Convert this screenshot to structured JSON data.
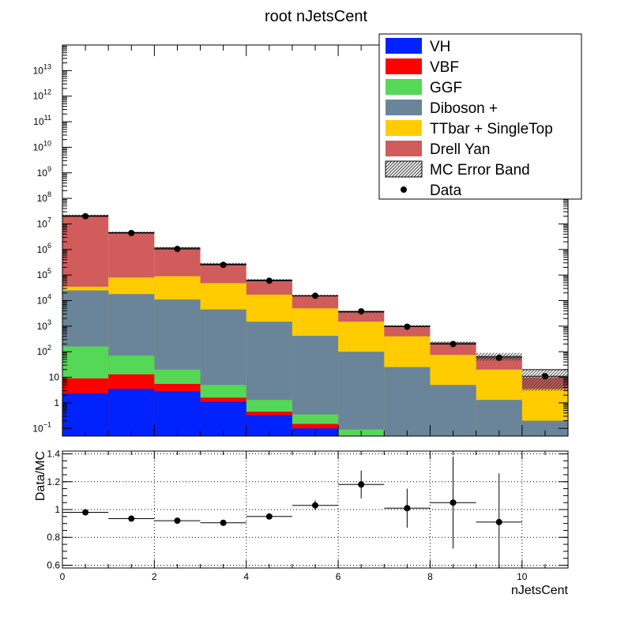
{
  "chart_data": [
    {
      "type": "bar",
      "stacked": true,
      "title": "root nJetsCent",
      "xlabel": "",
      "ylabel": "",
      "y_scale": "log",
      "xlim": [
        0,
        11
      ],
      "ylim": [
        0.05,
        100000000000000
      ],
      "bin_edges": [
        0,
        1,
        2,
        3,
        4,
        5,
        6,
        7,
        8,
        9,
        10,
        11
      ],
      "x_ticks": [
        "0",
        "2",
        "4",
        "6",
        "8",
        "10"
      ],
      "y_ticks": [
        {
          "base": "10",
          "exp": "−1"
        },
        {
          "base": "1",
          "exp": ""
        },
        {
          "base": "10",
          "exp": ""
        },
        {
          "base": "10",
          "exp": "2"
        },
        {
          "base": "10",
          "exp": "3"
        },
        {
          "base": "10",
          "exp": "4"
        },
        {
          "base": "10",
          "exp": "5"
        },
        {
          "base": "10",
          "exp": "6"
        },
        {
          "base": "10",
          "exp": "7"
        },
        {
          "base": "10",
          "exp": "8"
        },
        {
          "base": "10",
          "exp": "9"
        },
        {
          "base": "10",
          "exp": "10"
        },
        {
          "base": "10",
          "exp": "11"
        },
        {
          "base": "10",
          "exp": "12"
        },
        {
          "base": "10",
          "exp": "13"
        }
      ],
      "legend_position": "top-right",
      "series": [
        {
          "name": "VH",
          "color": "#0022ff",
          "cumulative": [
            2.3,
            3.5,
            2.8,
            1.1,
            0.33,
            0.1,
            0,
            0,
            0,
            0,
            0
          ]
        },
        {
          "name": "VBF",
          "color": "#ff0000",
          "cumulative": [
            9,
            13,
            5.5,
            1.6,
            0.45,
            0.15,
            0,
            0,
            0,
            0,
            0
          ]
        },
        {
          "name": "GGF",
          "color": "#55d855",
          "cumulative": [
            160,
            70,
            20,
            5,
            1.3,
            0.35,
            0.09,
            0,
            0,
            0,
            0
          ]
        },
        {
          "name": "Diboson +",
          "color": "#6a8599",
          "cumulative": [
            25000,
            18000,
            11000,
            4500,
            1500,
            420,
            100,
            25,
            5,
            1.3,
            0.2
          ]
        },
        {
          "name": "TTbar + SingleTop",
          "color": "#ffcc00",
          "cumulative": [
            35000,
            80000,
            90000,
            48000,
            17000,
            5000,
            1500,
            400,
            75,
            20,
            3.5
          ]
        },
        {
          "name": "Drell Yan",
          "color": "#d05c5c",
          "cumulative": [
            20000000,
            4500000,
            1100000,
            260000,
            60000,
            15000,
            3500,
            900,
            200,
            55,
            10
          ]
        }
      ],
      "mc_error_band": {
        "name": "MC Error Band",
        "total": [
          21000000,
          4600000,
          1150000,
          270000,
          63000,
          15500,
          3600,
          1000,
          220,
          65,
          20
        ],
        "upper": [
          23000000,
          5000000,
          1250000,
          300000,
          70000,
          17000,
          3900,
          1100,
          250,
          90,
          20
        ],
        "lower": [
          19000000,
          4200000,
          1050000,
          245000,
          57000,
          14000,
          3300,
          900,
          190,
          45,
          3
        ]
      },
      "data_series": {
        "name": "Data",
        "x": [
          0.5,
          1.5,
          2.5,
          3.5,
          4.5,
          5.5,
          6.5,
          7.5,
          8.5,
          9.5,
          10.5
        ],
        "y": [
          20000000,
          4400000,
          1050000,
          250000,
          60000,
          15500,
          3800,
          950,
          200,
          58,
          11
        ]
      }
    },
    {
      "type": "scatter",
      "title": "",
      "xlabel": "nJetsCent",
      "ylabel": "Data/MC",
      "xlim": [
        0,
        11
      ],
      "ylim": [
        0.58,
        1.42
      ],
      "grid": true,
      "x_ticks": [
        "0",
        "2",
        "4",
        "6",
        "8",
        "10"
      ],
      "y_ticks": [
        "0.6",
        "0.8",
        "1",
        "1.2",
        "1.4"
      ],
      "points": [
        {
          "x": 0.5,
          "y": 0.98,
          "err": 0.005
        },
        {
          "x": 1.5,
          "y": 0.935,
          "err": 0.005
        },
        {
          "x": 2.5,
          "y": 0.92,
          "err": 0.006
        },
        {
          "x": 3.5,
          "y": 0.905,
          "err": 0.01
        },
        {
          "x": 4.5,
          "y": 0.95,
          "err": 0.015
        },
        {
          "x": 5.5,
          "y": 1.03,
          "err": 0.035
        },
        {
          "x": 6.5,
          "y": 1.18,
          "err": 0.1
        },
        {
          "x": 7.5,
          "y": 1.01,
          "err": 0.14
        },
        {
          "x": 8.5,
          "y": 1.05,
          "err": 0.33
        },
        {
          "x": 9.5,
          "y": 0.91,
          "err": 0.35
        }
      ]
    }
  ]
}
